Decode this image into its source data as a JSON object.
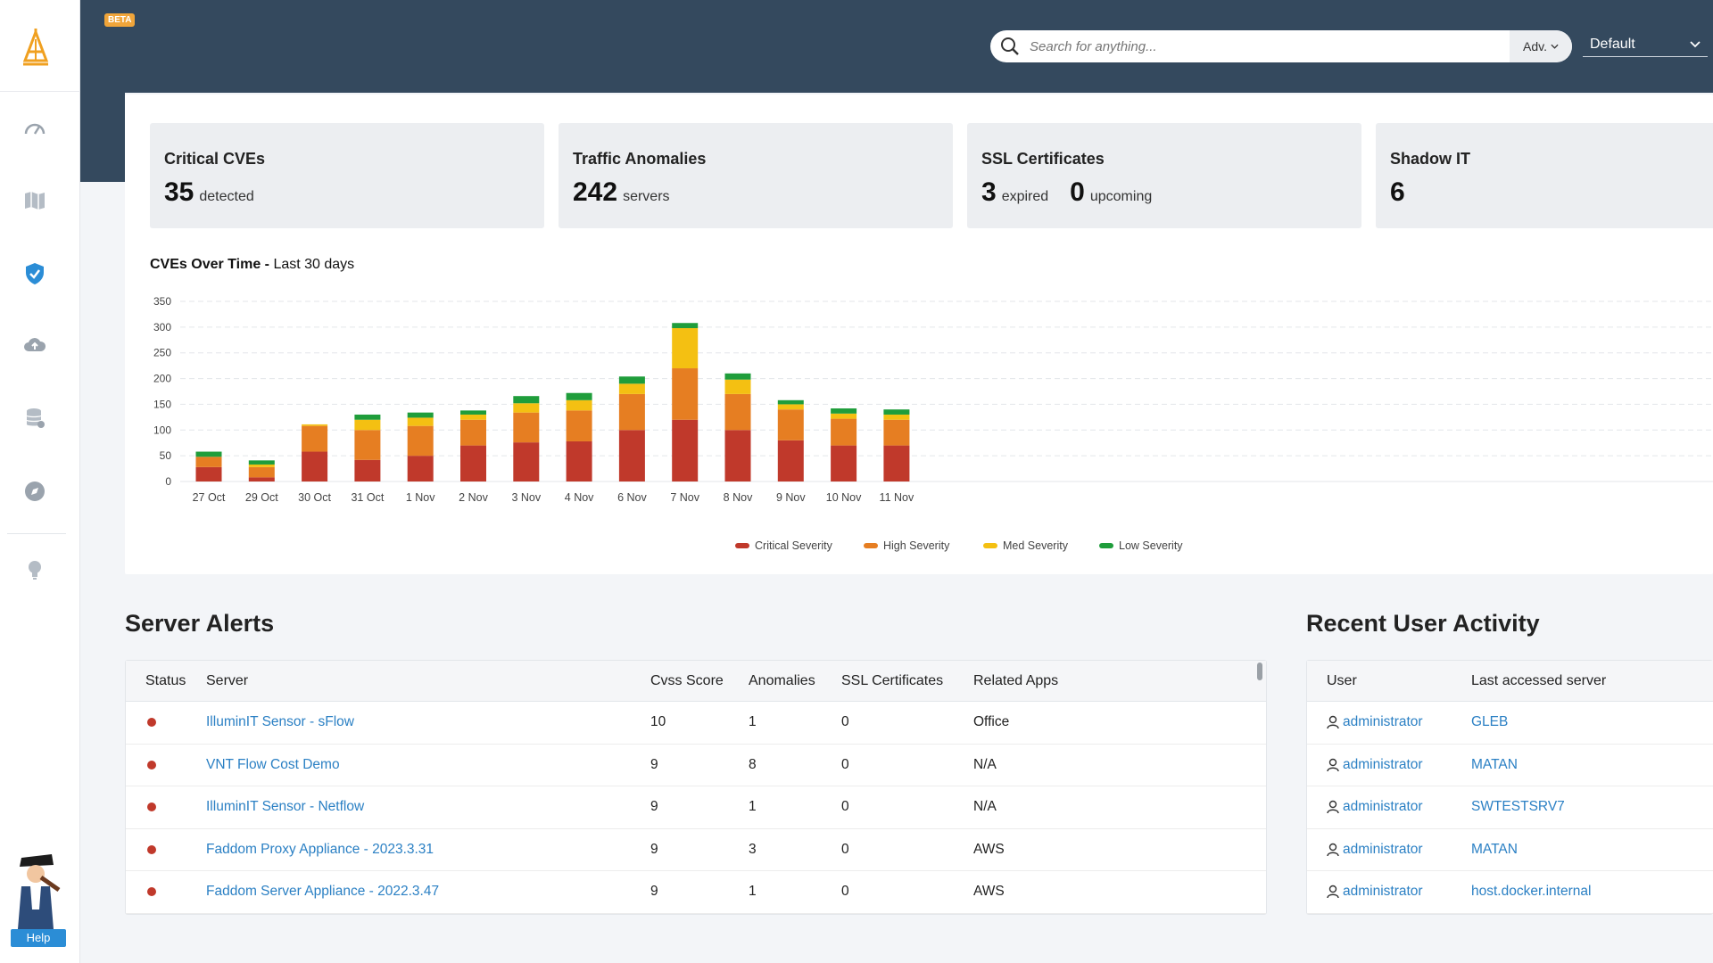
{
  "header": {
    "beta_label": "BETA",
    "search_placeholder": "Search for anything...",
    "adv_label": "Adv.",
    "profile_value": "Default"
  },
  "sidebar": {
    "items": [
      "dashboard",
      "map",
      "security",
      "cloud",
      "database",
      "compass",
      "insights"
    ],
    "active": "security",
    "help_label": "Help"
  },
  "stats": {
    "critical": {
      "title": "Critical CVEs",
      "value": "35",
      "unit": "detected"
    },
    "traffic": {
      "title": "Traffic Anomalies",
      "value": "242",
      "unit": "servers"
    },
    "ssl": {
      "title": "SSL Certificates",
      "expired_value": "3",
      "expired_unit": "expired",
      "upcoming_value": "0",
      "upcoming_unit": "upcoming"
    },
    "shadow": {
      "title": "Shadow IT",
      "value": "6"
    }
  },
  "chart": {
    "title_bold": "CVEs Over Time - ",
    "title_rest": "Last 30 days"
  },
  "chart_data": {
    "type": "bar",
    "stacked": true,
    "categories": [
      "27 Oct",
      "29 Oct",
      "30 Oct",
      "31 Oct",
      "1 Nov",
      "2 Nov",
      "3 Nov",
      "4 Nov",
      "6 Nov",
      "7 Nov",
      "8 Nov",
      "9 Nov",
      "10 Nov",
      "11 Nov"
    ],
    "series": [
      {
        "name": "Critical Severity",
        "color": "#c0392b",
        "values": [
          28,
          8,
          58,
          42,
          50,
          70,
          76,
          78,
          100,
          120,
          100,
          80,
          70,
          70
        ]
      },
      {
        "name": "High Severity",
        "color": "#e67e22",
        "values": [
          20,
          20,
          50,
          58,
          58,
          50,
          58,
          60,
          70,
          100,
          70,
          60,
          52,
          50
        ]
      },
      {
        "name": "Med Severity",
        "color": "#f4c012",
        "values": [
          0,
          5,
          3,
          20,
          16,
          10,
          18,
          20,
          20,
          78,
          28,
          10,
          10,
          10
        ]
      },
      {
        "name": "Low Severity",
        "color": "#1f9d3b",
        "values": [
          10,
          8,
          0,
          10,
          10,
          8,
          14,
          14,
          14,
          10,
          12,
          8,
          10,
          10
        ]
      }
    ],
    "ylim": [
      0,
      350
    ],
    "yticks": [
      0,
      50,
      100,
      150,
      200,
      250,
      300,
      350
    ],
    "grid": true,
    "legend_position": "bottom-center"
  },
  "server_alerts": {
    "title": "Server Alerts",
    "columns": [
      "Status",
      "Server",
      "Cvss Score",
      "Anomalies",
      "SSL Certificates",
      "Related Apps"
    ],
    "rows": [
      {
        "status": "critical",
        "server": "IlluminIT Sensor - sFlow",
        "cvss": "10",
        "anomalies": "1",
        "ssl": "0",
        "apps": "Office"
      },
      {
        "status": "critical",
        "server": "VNT Flow Cost Demo",
        "cvss": "9",
        "anomalies": "8",
        "ssl": "0",
        "apps": "N/A"
      },
      {
        "status": "critical",
        "server": "IlluminIT Sensor - Netflow",
        "cvss": "9",
        "anomalies": "1",
        "ssl": "0",
        "apps": "N/A"
      },
      {
        "status": "critical",
        "server": "Faddom Proxy Appliance - 2023.3.31",
        "cvss": "9",
        "anomalies": "3",
        "ssl": "0",
        "apps": "AWS"
      },
      {
        "status": "critical",
        "server": "Faddom Server Appliance - 2022.3.47",
        "cvss": "9",
        "anomalies": "1",
        "ssl": "0",
        "apps": "AWS"
      }
    ]
  },
  "user_activity": {
    "title": "Recent User Activity",
    "columns": [
      "User",
      "Last accessed server"
    ],
    "rows": [
      {
        "user": "administrator",
        "server": "GLEB"
      },
      {
        "user": "administrator",
        "server": "MATAN"
      },
      {
        "user": "administrator",
        "server": "SWTESTSRV7"
      },
      {
        "user": "administrator",
        "server": "MATAN"
      },
      {
        "user": "administrator",
        "server": "host.docker.internal"
      }
    ]
  }
}
